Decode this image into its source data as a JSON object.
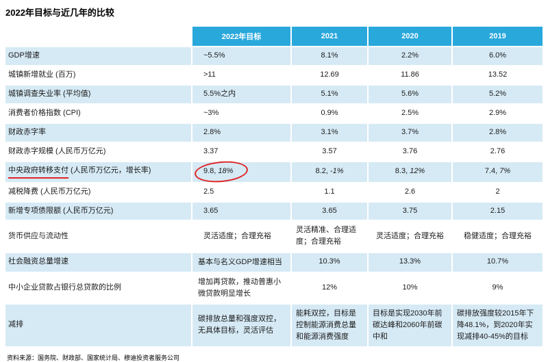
{
  "page": {
    "title": "2022年目标与近几年的比较",
    "source": "资料来源：国务院、财政部、国家统计局、穆迪投资者服务公司"
  },
  "colors": {
    "header_bg": "#29a8dc",
    "row_alt_bg": "#d6eaf5",
    "annotation_red": "#e02424",
    "text": "#1a1a1a"
  },
  "chart_data": {
    "type": "table",
    "title": "2022年目标与近几年的比较",
    "columns": [
      "",
      "2022年目标",
      "2021",
      "2020",
      "2019"
    ],
    "rows": [
      {
        "label": "GDP增速",
        "cells": [
          "~5.5%",
          "8.1%",
          "2.2%",
          "6.0%"
        ]
      },
      {
        "label": "城镇新增就业 (百万)",
        "cells": [
          ">11",
          "12.69",
          "11.86",
          "13.52"
        ]
      },
      {
        "label": "城镇调查失业率 (平均值)",
        "cells": [
          "5.5%之内",
          "5.1%",
          "5.6%",
          "5.2%"
        ]
      },
      {
        "label": "消费者价格指数 (CPI)",
        "cells": [
          "~3%",
          "0.9%",
          "2.5%",
          "2.9%"
        ]
      },
      {
        "label": "财政赤字率",
        "cells": [
          "2.8%",
          "3.1%",
          "3.7%",
          "2.8%"
        ]
      },
      {
        "label": "财政赤字规模 (人民币万亿元)",
        "cells": [
          "3.37",
          "3.57",
          "3.76",
          "2.76"
        ]
      },
      {
        "label": "中央政府转移支付 (人民币万亿元，增长率)",
        "label_parts": {
          "underlined": "中央政府转移支付",
          "rest": " (人民币万亿元，增长率)"
        },
        "cells": [
          {
            "main": "9.8, ",
            "italic": "18%",
            "annotation": "red-circle"
          },
          {
            "main": "8.2, ",
            "italic": "-1%"
          },
          {
            "main": "8.3, ",
            "italic": "12%"
          },
          {
            "main": "7.4, ",
            "italic": "7%"
          }
        ]
      },
      {
        "label": "减税降费 (人民币万亿元)",
        "cells": [
          "2.5",
          "1.1",
          "2.6",
          "2"
        ]
      },
      {
        "label": "新增专项债限额 (人民币万亿元)",
        "cells": [
          "3.65",
          "3.65",
          "3.75",
          "2.15"
        ]
      },
      {
        "label": "货币供应与流动性",
        "cells": [
          "灵活适度；合理充裕",
          "灵活精准、合理适度；合理充裕",
          "灵活适度；合理充裕",
          "稳健适度；合理充裕"
        ]
      },
      {
        "label": "社会融资总量增速",
        "cells": [
          "基本与名义GDP增速相当",
          "10.3%",
          "13.3%",
          "10.7%"
        ]
      },
      {
        "label": "中小企业贷款占银行总贷款的比例",
        "cells": [
          "增加再贷款，推动普惠小微贷款明显增长",
          "12%",
          "10%",
          "9%"
        ]
      },
      {
        "label": "减排",
        "cells": [
          "碳排放总量和强度双控，无具体目标，灵活评估",
          "能耗双控，目标是控制能源消费总量和能源消费强度",
          "目标是实现2030年前碳达峰和2060年前碳中和",
          "碳排放强度较2015年下降48.1%，到2020年实现减排40-45%的目标"
        ]
      }
    ]
  }
}
